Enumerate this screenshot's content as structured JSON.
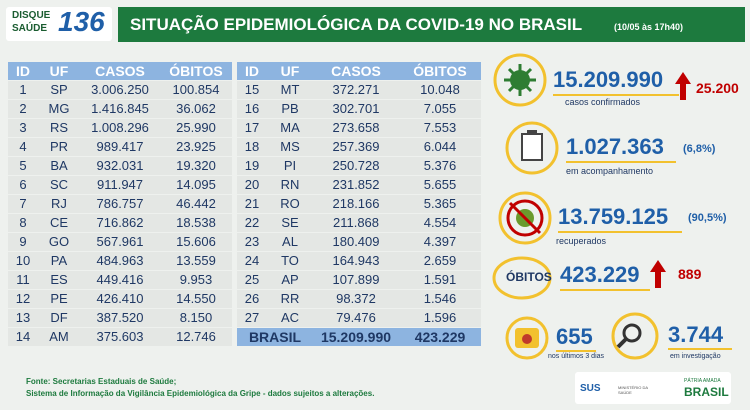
{
  "header": {
    "logo_top": "DISQUE",
    "logo_bottom": "SAÚDE",
    "logo_number": "136",
    "title": "SITUAÇÃO EPIDEMIOLÓGICA DA COVID-19 NO BRASIL",
    "timestamp": "(10/05 às 17h40)"
  },
  "table": {
    "columns": [
      "ID",
      "UF",
      "CASOS",
      "ÓBITOS"
    ],
    "rows": [
      [
        "1",
        "SP",
        "3.006.250",
        "100.854"
      ],
      [
        "2",
        "MG",
        "1.416.845",
        "36.062"
      ],
      [
        "3",
        "RS",
        "1.008.296",
        "25.990"
      ],
      [
        "4",
        "PR",
        "989.417",
        "23.925"
      ],
      [
        "5",
        "BA",
        "932.031",
        "19.320"
      ],
      [
        "6",
        "SC",
        "911.947",
        "14.095"
      ],
      [
        "7",
        "RJ",
        "786.757",
        "46.442"
      ],
      [
        "8",
        "CE",
        "716.862",
        "18.538"
      ],
      [
        "9",
        "GO",
        "567.961",
        "15.606"
      ],
      [
        "10",
        "PA",
        "484.963",
        "13.559"
      ],
      [
        "11",
        "ES",
        "449.416",
        "9.953"
      ],
      [
        "12",
        "PE",
        "426.410",
        "14.550"
      ],
      [
        "13",
        "DF",
        "387.520",
        "8.150"
      ],
      [
        "14",
        "AM",
        "375.603",
        "12.746"
      ],
      [
        "15",
        "MT",
        "372.271",
        "10.048"
      ],
      [
        "16",
        "PB",
        "302.701",
        "7.055"
      ],
      [
        "17",
        "MA",
        "273.658",
        "7.553"
      ],
      [
        "18",
        "MS",
        "257.369",
        "6.044"
      ],
      [
        "19",
        "PI",
        "250.728",
        "5.376"
      ],
      [
        "20",
        "RN",
        "231.852",
        "5.655"
      ],
      [
        "21",
        "RO",
        "218.166",
        "5.365"
      ],
      [
        "22",
        "SE",
        "211.868",
        "4.554"
      ],
      [
        "23",
        "AL",
        "180.409",
        "4.397"
      ],
      [
        "24",
        "TO",
        "164.943",
        "2.659"
      ],
      [
        "25",
        "AP",
        "107.899",
        "1.591"
      ],
      [
        "26",
        "RR",
        "98.372",
        "1.546"
      ],
      [
        "27",
        "AC",
        "79.476",
        "1.596"
      ]
    ],
    "total": {
      "label": "BRASIL",
      "cases": "15.209.990",
      "deaths": "423.229"
    }
  },
  "stats": {
    "confirmed": {
      "value": "15.209.990",
      "increase": "25.200",
      "label": "casos confirmados"
    },
    "monitoring": {
      "value": "1.027.363",
      "percent": "(6,8%)",
      "label": "em acompanhamento"
    },
    "recovered": {
      "value": "13.759.125",
      "percent": "(90,5%)",
      "label": "recuperados"
    },
    "deaths": {
      "badge": "ÓBITOS",
      "value": "423.229",
      "increase": "889"
    },
    "recent": {
      "value": "655",
      "label": "nos últimos 3 dias"
    },
    "investigation": {
      "value": "3.744",
      "label": "em investigação"
    }
  },
  "footer": {
    "source_1": "Fonte: Secretarias Estaduais de Saúde;",
    "source_2": "Sistema de Informação da Vigilância Epidemiológica da Gripe - dados sujeitos a alterações.",
    "logo_sus": "SUS",
    "logo_ministry": "MINISTÉRIO DA SAÚDE",
    "logo_motto": "PÁTRIA AMADA",
    "logo_country": "BRASIL"
  }
}
